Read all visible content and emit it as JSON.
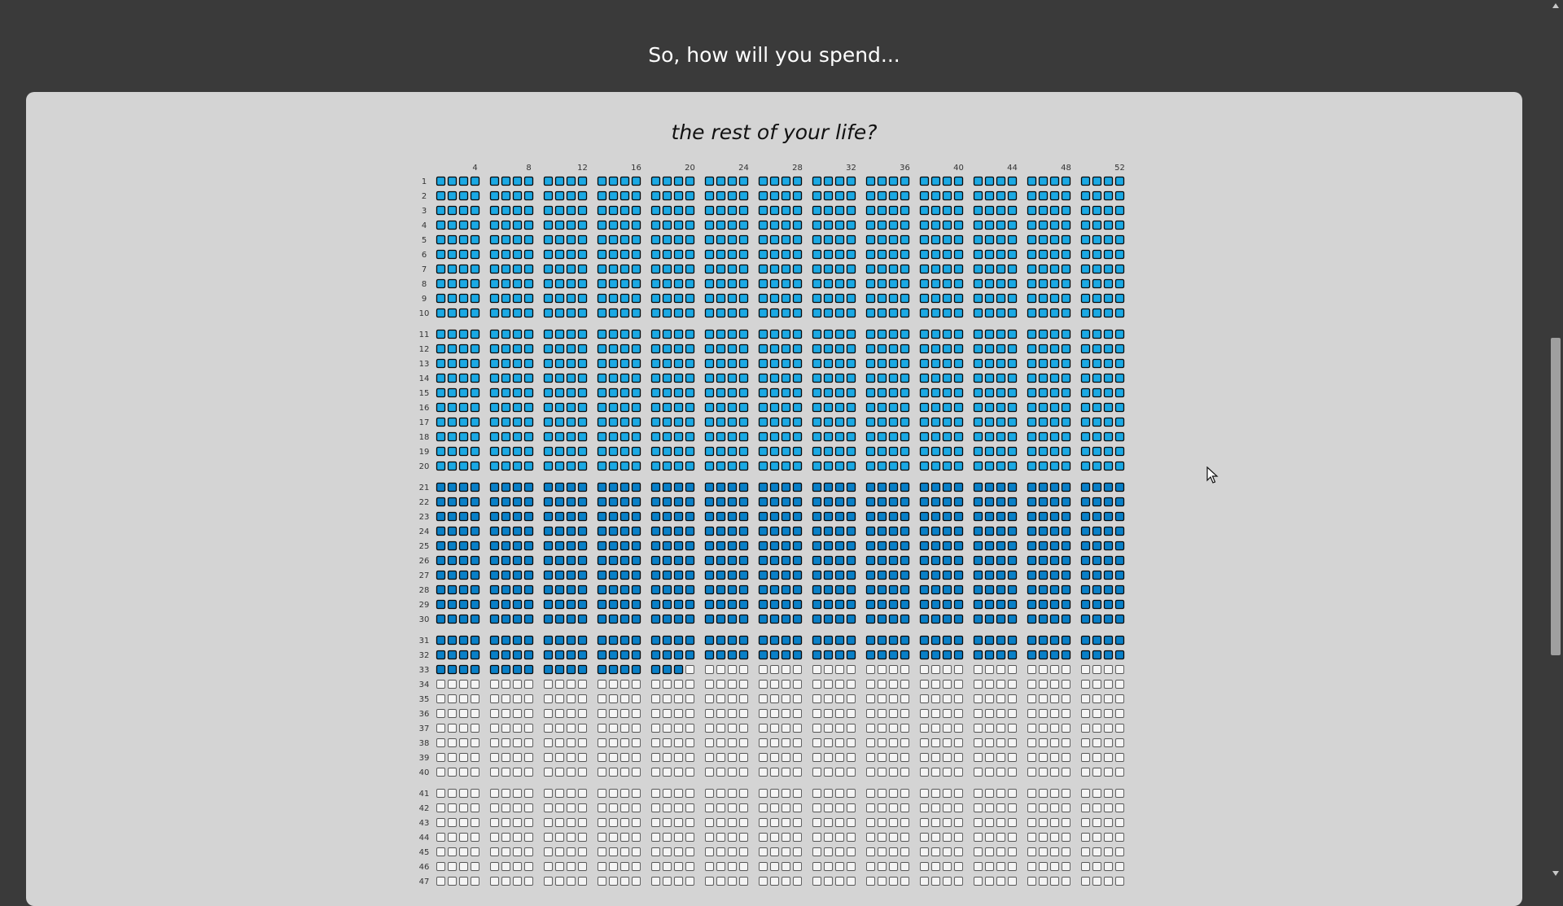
{
  "heading": "So, how will you spend...",
  "subtitle": "the rest of your life?",
  "life_grid": {
    "week_labels": [
      "4",
      "8",
      "12",
      "16",
      "20",
      "24",
      "28",
      "32",
      "36",
      "40",
      "44",
      "48",
      "52"
    ],
    "row_labels": [
      "1",
      "2",
      "3",
      "4",
      "5",
      "6",
      "7",
      "8",
      "9",
      "10",
      "11",
      "12",
      "13",
      "14",
      "15",
      "16",
      "17",
      "18",
      "19",
      "20",
      "21",
      "22",
      "23",
      "24",
      "25",
      "26",
      "27",
      "28",
      "29",
      "30",
      "31",
      "32",
      "33",
      "34",
      "35",
      "36",
      "37",
      "38",
      "39",
      "40",
      "41",
      "42",
      "43",
      "44",
      "45",
      "46",
      "47"
    ],
    "weeks_per_row": 52,
    "years_shown": 47,
    "weeks_lived": 1683,
    "colors": {
      "lived_early": "#1ba9e4",
      "lived_late": "#0980c8",
      "lived_border": "#0a0a0a",
      "future_fill": "#f4f4f4",
      "future_border": "#555555",
      "scrollbar_thumb": "#9f9f9f"
    }
  },
  "icons": {
    "cursor": "mouse-pointer-icon",
    "scroll_up": "chevron-up-icon",
    "scroll_down": "chevron-down-icon"
  }
}
